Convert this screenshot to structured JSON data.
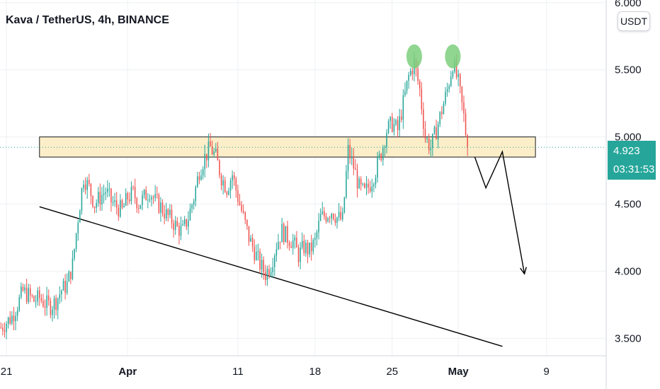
{
  "header": {
    "title": "Kava / TetherUS, 4h, BINANCE"
  },
  "unit_button": "USDT",
  "price_tag": {
    "price": "4.923",
    "countdown": "03:31:53",
    "color": "#26a69a"
  },
  "colors": {
    "up": "#26a69a",
    "down": "#ef5350",
    "zone_fill": "#fbeec9",
    "marker": "#7ccf7c",
    "grid": "#eef0f3"
  },
  "chart_data": {
    "type": "candlestick",
    "title": "Kava / TetherUS, 4h, BINANCE",
    "symbol": "Kava / TetherUS",
    "interval": "4h",
    "exchange": "BINANCE",
    "x_ticks": [
      {
        "label": "21",
        "date": "2021-03-21"
      },
      {
        "label": "Apr",
        "date": "2021-04-01"
      },
      {
        "label": "11",
        "date": "2021-04-11"
      },
      {
        "label": "18",
        "date": "2021-04-18"
      },
      {
        "label": "25",
        "date": "2021-04-25"
      },
      {
        "label": "May",
        "date": "2021-05-01"
      },
      {
        "label": "9",
        "date": "2021-05-09"
      }
    ],
    "y_ticks": [
      "6.000",
      "5.500",
      "5.000",
      "4.500",
      "4.000",
      "3.500"
    ],
    "xlim": [
      "2021-03-20T10:00",
      "2021-05-14T10:00"
    ],
    "ylim": [
      3.37,
      6.02
    ],
    "last_price": 4.923,
    "closes": [
      [
        "2021-03-20T12:00",
        3.58
      ],
      [
        "2021-03-21T00:00",
        3.62
      ],
      [
        "2021-03-21T12:00",
        3.66
      ],
      [
        "2021-03-22T00:00",
        3.75
      ],
      [
        "2021-03-22T12:00",
        3.85
      ],
      [
        "2021-03-23T00:00",
        3.82
      ],
      [
        "2021-03-23T12:00",
        3.78
      ],
      [
        "2021-03-24T00:00",
        3.8
      ],
      [
        "2021-03-24T12:00",
        3.76
      ],
      [
        "2021-03-25T00:00",
        3.74
      ],
      [
        "2021-03-25T12:00",
        3.78
      ],
      [
        "2021-03-26T00:00",
        3.86
      ],
      [
        "2021-03-26T12:00",
        3.9
      ],
      [
        "2021-03-27T00:00",
        4.05
      ],
      [
        "2021-03-27T12:00",
        4.4
      ],
      [
        "2021-03-28T00:00",
        4.7
      ],
      [
        "2021-03-28T12:00",
        4.62
      ],
      [
        "2021-03-29T00:00",
        4.5
      ],
      [
        "2021-03-29T12:00",
        4.55
      ],
      [
        "2021-03-30T00:00",
        4.6
      ],
      [
        "2021-03-30T12:00",
        4.52
      ],
      [
        "2021-03-31T00:00",
        4.48
      ],
      [
        "2021-03-31T12:00",
        4.45
      ],
      [
        "2021-04-01T00:00",
        4.55
      ],
      [
        "2021-04-01T12:00",
        4.58
      ],
      [
        "2021-04-02T00:00",
        4.5
      ],
      [
        "2021-04-02T12:00",
        4.55
      ],
      [
        "2021-04-03T00:00",
        4.6
      ],
      [
        "2021-04-03T12:00",
        4.52
      ],
      [
        "2021-04-04T00:00",
        4.48
      ],
      [
        "2021-04-04T12:00",
        4.42
      ],
      [
        "2021-04-05T00:00",
        4.38
      ],
      [
        "2021-04-05T12:00",
        4.32
      ],
      [
        "2021-04-06T00:00",
        4.3
      ],
      [
        "2021-04-06T12:00",
        4.4
      ],
      [
        "2021-04-07T00:00",
        4.55
      ],
      [
        "2021-04-07T12:00",
        4.75
      ],
      [
        "2021-04-08T00:00",
        4.85
      ],
      [
        "2021-04-08T12:00",
        4.92
      ],
      [
        "2021-04-09T00:00",
        4.85
      ],
      [
        "2021-04-09T12:00",
        4.7
      ],
      [
        "2021-04-10T00:00",
        4.62
      ],
      [
        "2021-04-10T12:00",
        4.72
      ],
      [
        "2021-04-11T00:00",
        4.55
      ],
      [
        "2021-04-11T12:00",
        4.4
      ],
      [
        "2021-04-12T00:00",
        4.25
      ],
      [
        "2021-04-12T12:00",
        4.15
      ],
      [
        "2021-04-13T00:00",
        4.05
      ],
      [
        "2021-04-13T12:00",
        3.98
      ],
      [
        "2021-04-14T00:00",
        4.05
      ],
      [
        "2021-04-14T12:00",
        4.2
      ],
      [
        "2021-04-15T00:00",
        4.3
      ],
      [
        "2021-04-15T12:00",
        4.25
      ],
      [
        "2021-04-16T00:00",
        4.22
      ],
      [
        "2021-04-16T12:00",
        4.12
      ],
      [
        "2021-04-17T00:00",
        4.18
      ],
      [
        "2021-04-17T12:00",
        4.15
      ],
      [
        "2021-04-18T00:00",
        4.22
      ],
      [
        "2021-04-18T12:00",
        4.4
      ],
      [
        "2021-04-19T00:00",
        4.42
      ],
      [
        "2021-04-19T12:00",
        4.45
      ],
      [
        "2021-04-20T00:00",
        4.4
      ],
      [
        "2021-04-20T12:00",
        4.38
      ],
      [
        "2021-04-21T00:00",
        4.9
      ],
      [
        "2021-04-21T12:00",
        4.78
      ],
      [
        "2021-04-22T00:00",
        4.62
      ],
      [
        "2021-04-22T12:00",
        4.58
      ],
      [
        "2021-04-23T00:00",
        4.65
      ],
      [
        "2021-04-23T12:00",
        4.75
      ],
      [
        "2021-04-24T00:00",
        4.88
      ],
      [
        "2021-04-24T12:00",
        5.05
      ],
      [
        "2021-04-25T00:00",
        5.1
      ],
      [
        "2021-04-25T12:00",
        5.05
      ],
      [
        "2021-04-26T00:00",
        5.25
      ],
      [
        "2021-04-26T12:00",
        5.45
      ],
      [
        "2021-04-27T00:00",
        5.55
      ],
      [
        "2021-04-27T12:00",
        5.35
      ],
      [
        "2021-04-28T00:00",
        5.0
      ],
      [
        "2021-04-28T12:00",
        4.92
      ],
      [
        "2021-04-29T00:00",
        5.05
      ],
      [
        "2021-04-29T12:00",
        5.2
      ],
      [
        "2021-04-30T00:00",
        5.35
      ],
      [
        "2021-04-30T12:00",
        5.55
      ],
      [
        "2021-05-01T00:00",
        5.4
      ],
      [
        "2021-05-01T12:00",
        5.15
      ],
      [
        "2021-05-01T20:00",
        4.92
      ]
    ],
    "drawings": {
      "resistance_zone": {
        "from": "2021-03-24T00:00",
        "to": "2021-05-08T00:00",
        "low": 4.85,
        "high": 5.0
      },
      "trendline": [
        [
          "2021-03-24T00:00",
          4.48
        ],
        [
          "2021-05-05T00:00",
          3.44
        ]
      ],
      "top_markers": [
        [
          "2021-04-27T00:00",
          5.6
        ],
        [
          "2021-04-30T12:00",
          5.6
        ]
      ],
      "projection_path": [
        [
          "2021-05-02T12:00",
          4.85
        ],
        [
          "2021-05-03T12:00",
          4.62
        ],
        [
          "2021-05-05T00:00",
          4.89
        ],
        [
          "2021-05-07T00:00",
          3.98
        ]
      ]
    }
  }
}
